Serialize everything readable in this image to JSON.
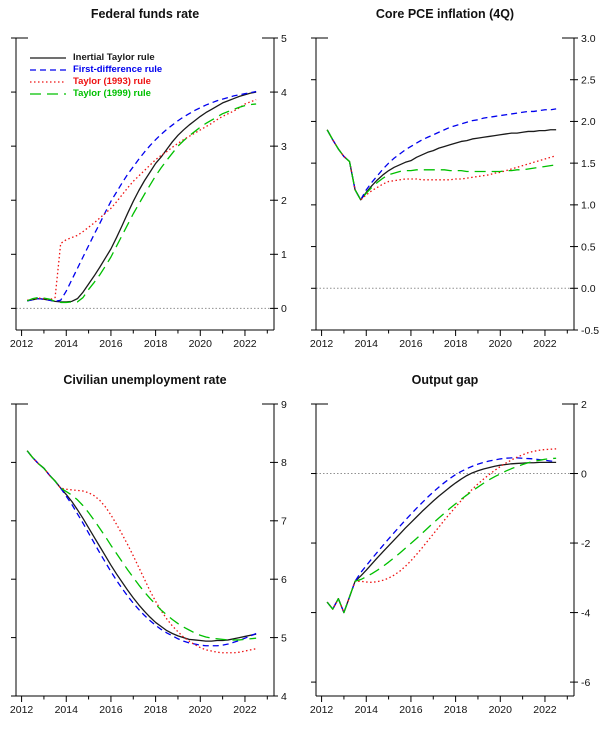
{
  "figure": {
    "background": "#ffffff",
    "axis_color": "#000000",
    "tick_label_color": "#111111",
    "zero_line_color": "#909090"
  },
  "legend": {
    "items": [
      {
        "label": "Inertial Taylor rule",
        "color": "#1a1a1a",
        "dash": ""
      },
      {
        "label": "First-difference rule",
        "color": "#0000ee",
        "dash": "6,4"
      },
      {
        "label": "Taylor (1993) rule",
        "color": "#ee1111",
        "dash": "1.5,2.5"
      },
      {
        "label": "Taylor (1999) rule",
        "color": "#00c000",
        "dash": "11,6"
      }
    ]
  },
  "chart_data": [
    {
      "type": "line",
      "title": "Federal funds rate",
      "xlim": [
        2011.75,
        2023.3
      ],
      "ylim": [
        -0.4,
        5
      ],
      "yticks": [
        0,
        1,
        2,
        3,
        4,
        5
      ],
      "ytick_labels": [
        "0",
        "1",
        "2",
        "3",
        "4",
        "5"
      ],
      "xticks_major": [
        2012,
        2014,
        2016,
        2018,
        2020,
        2022
      ],
      "xtick_labels": [
        "2012",
        "2014",
        "2016",
        "2018",
        "2020",
        "2022"
      ],
      "xticks_minor": [
        2013,
        2015,
        2017,
        2019,
        2021,
        2023
      ],
      "zero_line": 0,
      "legend": true,
      "x_start": 2012.25,
      "x_step": 0.25,
      "series": [
        {
          "name": "Inertial Taylor rule",
          "values": [
            0.14,
            0.16,
            0.18,
            0.17,
            0.15,
            0.13,
            0.12,
            0.12,
            0.13,
            0.18,
            0.3,
            0.45,
            0.6,
            0.76,
            0.93,
            1.1,
            1.31,
            1.53,
            1.76,
            1.98,
            2.18,
            2.36,
            2.52,
            2.68,
            2.8,
            2.94,
            3.08,
            3.2,
            3.3,
            3.39,
            3.47,
            3.55,
            3.62,
            3.68,
            3.74,
            3.8,
            3.84,
            3.88,
            3.92,
            3.95,
            3.98,
            4.0
          ]
        },
        {
          "name": "First-difference rule",
          "values": [
            0.14,
            0.16,
            0.18,
            0.17,
            0.15,
            0.13,
            0.15,
            0.32,
            0.53,
            0.74,
            0.95,
            1.16,
            1.37,
            1.57,
            1.78,
            1.98,
            2.15,
            2.32,
            2.48,
            2.62,
            2.76,
            2.89,
            3.01,
            3.12,
            3.22,
            3.31,
            3.39,
            3.47,
            3.54,
            3.6,
            3.66,
            3.71,
            3.76,
            3.8,
            3.84,
            3.87,
            3.9,
            3.93,
            3.95,
            3.97,
            3.99,
            4.01
          ]
        },
        {
          "name": "Taylor (1993) rule",
          "values": [
            0.15,
            0.17,
            0.19,
            0.18,
            0.16,
            0.2,
            1.2,
            1.27,
            1.31,
            1.35,
            1.42,
            1.5,
            1.58,
            1.67,
            1.76,
            1.85,
            1.97,
            2.1,
            2.23,
            2.35,
            2.45,
            2.55,
            2.65,
            2.75,
            2.83,
            2.9,
            2.98,
            3.05,
            3.12,
            3.18,
            3.24,
            3.3,
            3.36,
            3.42,
            3.49,
            3.55,
            3.6,
            3.65,
            3.71,
            3.78,
            3.82,
            3.86
          ]
        },
        {
          "name": "Taylor (1999) rule",
          "values": [
            0.14,
            0.18,
            0.2,
            0.19,
            0.17,
            0.13,
            0.11,
            0.11,
            0.12,
            0.12,
            0.2,
            0.35,
            0.48,
            0.62,
            0.78,
            0.95,
            1.15,
            1.35,
            1.55,
            1.75,
            1.93,
            2.11,
            2.28,
            2.45,
            2.6,
            2.74,
            2.87,
            3.0,
            3.1,
            3.19,
            3.27,
            3.35,
            3.42,
            3.48,
            3.54,
            3.6,
            3.64,
            3.68,
            3.72,
            3.75,
            3.77,
            3.78
          ]
        }
      ]
    },
    {
      "type": "line",
      "title": "Core PCE inflation (4Q)",
      "xlim": [
        2011.75,
        2023.3
      ],
      "ylim": [
        -0.5,
        3
      ],
      "yticks": [
        -0.5,
        0,
        0.5,
        1,
        1.5,
        2,
        2.5,
        3
      ],
      "ytick_labels": [
        "-0.5",
        "0.0",
        "0.5",
        "1.0",
        "1.5",
        "2.0",
        "2.5",
        "3.0"
      ],
      "xticks_major": [
        2012,
        2014,
        2016,
        2018,
        2020,
        2022
      ],
      "xtick_labels": [
        "2012",
        "2014",
        "2016",
        "2018",
        "2020",
        "2022"
      ],
      "xticks_minor": [
        2013,
        2015,
        2017,
        2019,
        2021,
        2023
      ],
      "zero_line": 0,
      "legend": false,
      "x_start": 2012.25,
      "x_step": 0.25,
      "series": [
        {
          "name": "Inertial Taylor rule",
          "values": [
            1.9,
            1.78,
            1.67,
            1.58,
            1.52,
            1.18,
            1.06,
            1.15,
            1.23,
            1.3,
            1.36,
            1.41,
            1.45,
            1.48,
            1.51,
            1.53,
            1.57,
            1.6,
            1.63,
            1.65,
            1.68,
            1.7,
            1.72,
            1.74,
            1.76,
            1.77,
            1.79,
            1.8,
            1.81,
            1.82,
            1.83,
            1.84,
            1.85,
            1.86,
            1.86,
            1.87,
            1.88,
            1.88,
            1.89,
            1.89,
            1.9,
            1.9
          ]
        },
        {
          "name": "First-difference rule",
          "values": [
            1.9,
            1.78,
            1.67,
            1.58,
            1.52,
            1.18,
            1.06,
            1.18,
            1.27,
            1.35,
            1.43,
            1.5,
            1.56,
            1.61,
            1.66,
            1.7,
            1.74,
            1.78,
            1.81,
            1.84,
            1.87,
            1.9,
            1.93,
            1.95,
            1.97,
            1.99,
            2.01,
            2.02,
            2.04,
            2.05,
            2.06,
            2.07,
            2.08,
            2.09,
            2.1,
            2.11,
            2.12,
            2.12,
            2.13,
            2.14,
            2.14,
            2.15
          ]
        },
        {
          "name": "Taylor (1993) rule",
          "values": [
            1.9,
            1.78,
            1.67,
            1.58,
            1.52,
            1.18,
            1.06,
            1.12,
            1.17,
            1.21,
            1.25,
            1.28,
            1.29,
            1.3,
            1.31,
            1.31,
            1.31,
            1.3,
            1.3,
            1.3,
            1.3,
            1.3,
            1.3,
            1.31,
            1.31,
            1.32,
            1.33,
            1.34,
            1.35,
            1.36,
            1.38,
            1.39,
            1.41,
            1.43,
            1.45,
            1.47,
            1.49,
            1.51,
            1.53,
            1.55,
            1.57,
            1.59
          ]
        },
        {
          "name": "Taylor (1999) rule",
          "values": [
            1.9,
            1.78,
            1.67,
            1.58,
            1.52,
            1.18,
            1.06,
            1.14,
            1.21,
            1.27,
            1.32,
            1.36,
            1.38,
            1.4,
            1.41,
            1.41,
            1.42,
            1.42,
            1.42,
            1.42,
            1.42,
            1.42,
            1.41,
            1.41,
            1.41,
            1.4,
            1.4,
            1.4,
            1.4,
            1.4,
            1.4,
            1.4,
            1.41,
            1.41,
            1.42,
            1.42,
            1.43,
            1.44,
            1.45,
            1.46,
            1.47,
            1.48
          ]
        }
      ]
    },
    {
      "type": "line",
      "title": "Civilian unemployment rate",
      "xlim": [
        2011.75,
        2023.3
      ],
      "ylim": [
        4,
        9
      ],
      "yticks": [
        4,
        5,
        6,
        7,
        8,
        9
      ],
      "ytick_labels": [
        "4",
        "5",
        "6",
        "7",
        "8",
        "9"
      ],
      "xticks_major": [
        2012,
        2014,
        2016,
        2018,
        2020,
        2022
      ],
      "xtick_labels": [
        "2012",
        "2014",
        "2016",
        "2018",
        "2020",
        "2022"
      ],
      "xticks_minor": [
        2013,
        2015,
        2017,
        2019,
        2021,
        2023
      ],
      "zero_line": null,
      "legend": false,
      "x_start": 2012.25,
      "x_step": 0.25,
      "series": [
        {
          "name": "Inertial Taylor rule",
          "values": [
            8.2,
            8.08,
            7.98,
            7.9,
            7.78,
            7.68,
            7.56,
            7.45,
            7.33,
            7.19,
            7.04,
            6.88,
            6.72,
            6.56,
            6.4,
            6.24,
            6.09,
            5.95,
            5.81,
            5.68,
            5.56,
            5.45,
            5.35,
            5.26,
            5.19,
            5.12,
            5.07,
            5.03,
            5.0,
            4.97,
            4.96,
            4.95,
            4.94,
            4.94,
            4.95,
            4.95,
            4.96,
            4.98,
            5.0,
            5.02,
            5.04,
            5.06
          ]
        },
        {
          "name": "First-difference rule",
          "values": [
            8.2,
            8.08,
            7.98,
            7.9,
            7.78,
            7.68,
            7.56,
            7.42,
            7.28,
            7.12,
            6.96,
            6.79,
            6.62,
            6.45,
            6.29,
            6.13,
            5.98,
            5.84,
            5.71,
            5.59,
            5.48,
            5.38,
            5.29,
            5.21,
            5.14,
            5.08,
            5.03,
            4.98,
            4.94,
            4.91,
            4.89,
            4.87,
            4.86,
            4.86,
            4.86,
            4.87,
            4.89,
            4.92,
            4.95,
            4.99,
            5.03,
            5.07
          ]
        },
        {
          "name": "Taylor (1993) rule",
          "values": [
            8.2,
            8.08,
            7.98,
            7.9,
            7.78,
            7.68,
            7.56,
            7.54,
            7.53,
            7.52,
            7.51,
            7.48,
            7.43,
            7.35,
            7.24,
            7.1,
            6.94,
            6.77,
            6.59,
            6.4,
            6.2,
            6.0,
            5.8,
            5.62,
            5.46,
            5.32,
            5.2,
            5.1,
            5.01,
            4.94,
            4.88,
            4.83,
            4.79,
            4.77,
            4.75,
            4.74,
            4.74,
            4.74,
            4.75,
            4.77,
            4.79,
            4.81
          ]
        },
        {
          "name": "Taylor (1999) rule",
          "values": [
            8.2,
            8.08,
            7.98,
            7.9,
            7.78,
            7.68,
            7.56,
            7.5,
            7.44,
            7.36,
            7.26,
            7.14,
            7.01,
            6.87,
            6.73,
            6.58,
            6.44,
            6.3,
            6.16,
            6.03,
            5.9,
            5.78,
            5.67,
            5.57,
            5.47,
            5.39,
            5.31,
            5.24,
            5.18,
            5.13,
            5.08,
            5.04,
            5.01,
            4.99,
            4.98,
            4.97,
            4.96,
            4.96,
            4.96,
            4.97,
            4.98,
            4.99
          ]
        }
      ]
    },
    {
      "type": "line",
      "title": "Output gap",
      "xlim": [
        2011.75,
        2023.3
      ],
      "ylim": [
        -6.4,
        2
      ],
      "yticks": [
        -6,
        -4,
        -2,
        0,
        2
      ],
      "ytick_labels": [
        "-6",
        "-4",
        "-2",
        "0",
        "2"
      ],
      "xticks_major": [
        2012,
        2014,
        2016,
        2018,
        2020,
        2022
      ],
      "xtick_labels": [
        "2012",
        "2014",
        "2016",
        "2018",
        "2020",
        "2022"
      ],
      "xticks_minor": [
        2013,
        2015,
        2017,
        2019,
        2021,
        2023
      ],
      "zero_line": 0,
      "legend": false,
      "x_start": 2012.25,
      "x_step": 0.25,
      "series": [
        {
          "name": "Inertial Taylor rule",
          "values": [
            -3.7,
            -3.9,
            -3.6,
            -4.0,
            -3.55,
            -3.1,
            -2.95,
            -2.78,
            -2.6,
            -2.42,
            -2.25,
            -2.08,
            -1.91,
            -1.74,
            -1.57,
            -1.41,
            -1.25,
            -1.09,
            -0.94,
            -0.79,
            -0.65,
            -0.52,
            -0.39,
            -0.27,
            -0.16,
            -0.06,
            0.02,
            0.08,
            0.13,
            0.17,
            0.21,
            0.24,
            0.26,
            0.28,
            0.29,
            0.3,
            0.31,
            0.31,
            0.32,
            0.32,
            0.32,
            0.32
          ]
        },
        {
          "name": "First-difference rule",
          "values": [
            -3.7,
            -3.9,
            -3.6,
            -4.0,
            -3.55,
            -3.1,
            -2.85,
            -2.65,
            -2.45,
            -2.26,
            -2.07,
            -1.88,
            -1.7,
            -1.52,
            -1.34,
            -1.17,
            -1.0,
            -0.84,
            -0.68,
            -0.53,
            -0.39,
            -0.26,
            -0.14,
            -0.03,
            0.06,
            0.14,
            0.21,
            0.27,
            0.32,
            0.36,
            0.39,
            0.42,
            0.44,
            0.45,
            0.45,
            0.44,
            0.43,
            0.42,
            0.4,
            0.38,
            0.36,
            0.35
          ]
        },
        {
          "name": "Taylor (1993) rule",
          "values": [
            -3.7,
            -3.9,
            -3.6,
            -4.0,
            -3.55,
            -3.1,
            -3.1,
            -3.12,
            -3.13,
            -3.11,
            -3.07,
            -3.01,
            -2.92,
            -2.81,
            -2.67,
            -2.51,
            -2.33,
            -2.14,
            -1.94,
            -1.74,
            -1.54,
            -1.34,
            -1.15,
            -0.96,
            -0.78,
            -0.61,
            -0.45,
            -0.3,
            -0.16,
            -0.03,
            0.09,
            0.2,
            0.3,
            0.39,
            0.47,
            0.54,
            0.6,
            0.64,
            0.67,
            0.69,
            0.7,
            0.71
          ]
        },
        {
          "name": "Taylor (1999) rule",
          "values": [
            -3.7,
            -3.9,
            -3.6,
            -4.0,
            -3.55,
            -3.1,
            -3.05,
            -2.97,
            -2.88,
            -2.78,
            -2.67,
            -2.55,
            -2.42,
            -2.29,
            -2.15,
            -2.01,
            -1.87,
            -1.72,
            -1.57,
            -1.42,
            -1.28,
            -1.14,
            -1.0,
            -0.87,
            -0.74,
            -0.62,
            -0.5,
            -0.39,
            -0.28,
            -0.18,
            -0.09,
            -0.01,
            0.07,
            0.14,
            0.2,
            0.26,
            0.31,
            0.35,
            0.38,
            0.41,
            0.43,
            0.44
          ]
        }
      ]
    }
  ]
}
